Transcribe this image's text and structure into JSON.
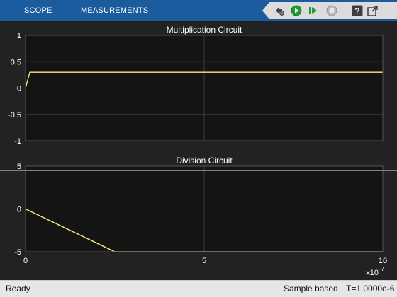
{
  "toolbar": {
    "tabs": [
      "SCOPE",
      "MEASUREMENTS"
    ],
    "buttons": [
      "step-settings-icon",
      "run-icon",
      "step-forward-icon",
      "stop-icon",
      "help-icon",
      "undock-icon"
    ]
  },
  "colors": {
    "toolbar_bg": "#1a5c9e",
    "axes_bg": "#141414",
    "figure_bg": "#222222",
    "trace": "#ffe680",
    "grid": "#3c3c3c"
  },
  "chart_data": [
    {
      "type": "line",
      "title": "Multiplication Circuit",
      "xlim": [
        0,
        10
      ],
      "ylim": [
        -1,
        1
      ],
      "yticks": [
        "1",
        "0.5",
        "0",
        "-0.5",
        "-1"
      ],
      "xticks": [],
      "grid": true,
      "series": [
        {
          "x": [
            0,
            0.12,
            10
          ],
          "y": [
            0,
            0.3,
            0.3
          ]
        }
      ]
    },
    {
      "type": "line",
      "title": "Division Circuit",
      "xlim": [
        0,
        10
      ],
      "ylim": [
        -5,
        5
      ],
      "yticks": [
        "5",
        "0",
        "-5"
      ],
      "xticks": [
        "0",
        "5",
        "10"
      ],
      "x_exponent_label": "x10",
      "x_exponent_power": "-7",
      "grid": true,
      "series": [
        {
          "x": [
            0,
            2.5,
            10
          ],
          "y": [
            0,
            -5,
            -5
          ]
        }
      ]
    }
  ],
  "status": {
    "left": "Ready",
    "mode": "Sample based",
    "time": "T=1.0000e-6"
  }
}
